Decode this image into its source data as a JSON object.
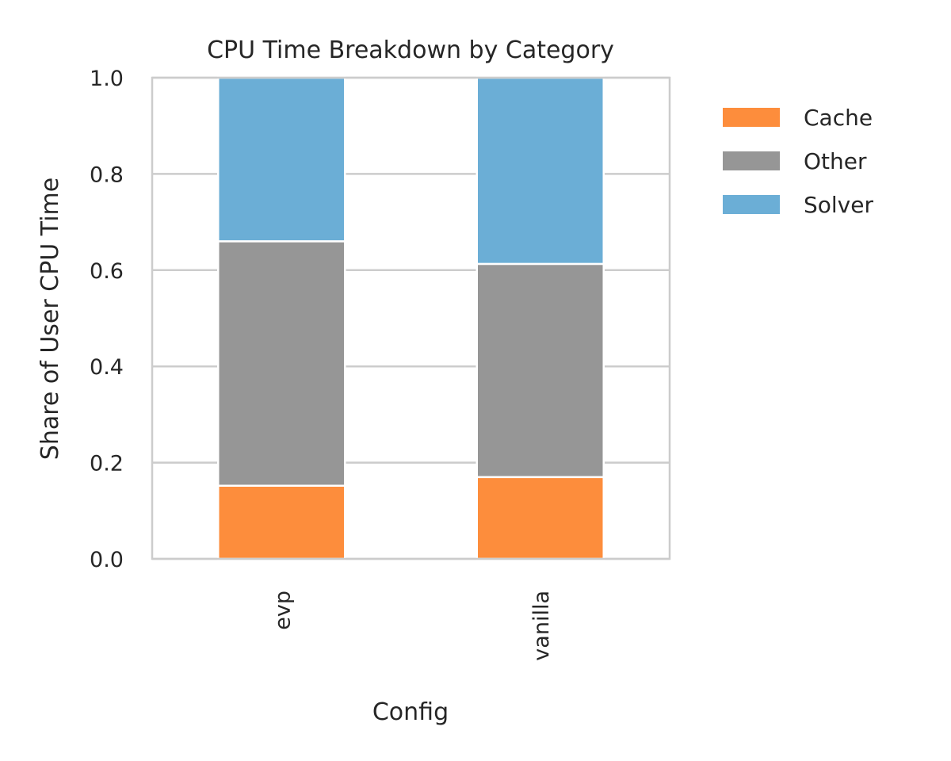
{
  "chart_data": {
    "type": "bar",
    "stacked": true,
    "title": "CPU Time Breakdown by Category",
    "xlabel": "Config",
    "ylabel": "Share of User CPU Time",
    "categories": [
      "evp",
      "vanilla"
    ],
    "series": [
      {
        "name": "Cache",
        "values": [
          0.152,
          0.17
        ],
        "color": "#fd8d3c"
      },
      {
        "name": "Other",
        "values": [
          0.508,
          0.443
        ],
        "color": "#969696"
      },
      {
        "name": "Solver",
        "values": [
          0.34,
          0.387
        ],
        "color": "#6baed6"
      }
    ],
    "ylim": [
      0,
      1.0
    ],
    "yticks": [
      "0.0",
      "0.2",
      "0.4",
      "0.6",
      "0.8",
      "1.0"
    ],
    "grid": true,
    "legend_position": "outside-right"
  }
}
